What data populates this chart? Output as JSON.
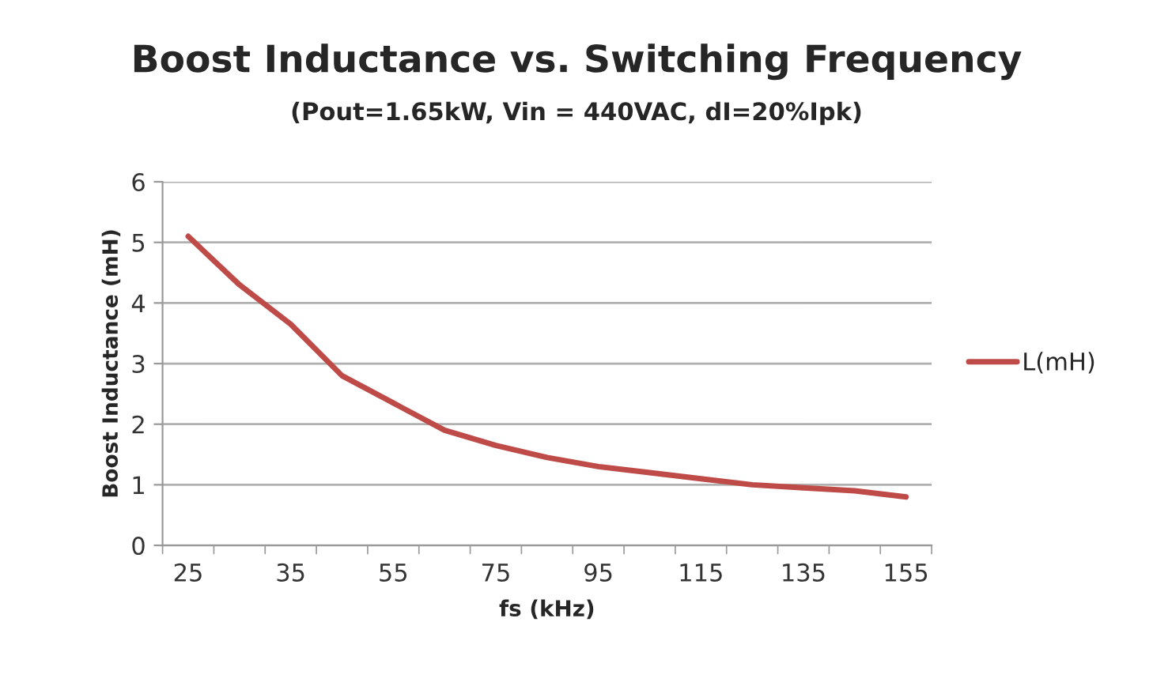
{
  "chart_data": {
    "type": "line",
    "title": "Boost Inductance vs. Switching Frequency",
    "subtitle": "(Pout=1.65kW, Vin = 440VAC, dI=20%Ipk)",
    "xlabel": "fs (kHz)",
    "ylabel": "Boost Inductance (mH)",
    "categories": [
      "25",
      null,
      "35",
      null,
      "55",
      null,
      "75",
      null,
      "95",
      null,
      "115",
      null,
      "135",
      null,
      "155"
    ],
    "series": [
      {
        "name": "L(mH)",
        "color": "#be4b48",
        "values": [
          5.1,
          4.3,
          3.65,
          2.8,
          2.35,
          1.9,
          1.65,
          1.45,
          1.3,
          1.2,
          1.1,
          1.0,
          0.95,
          0.9,
          0.8
        ]
      }
    ],
    "ylim": [
      0,
      6
    ],
    "yticks": [
      0,
      1,
      2,
      3,
      4,
      5,
      6
    ],
    "grid": "y",
    "legend": "right",
    "marker": "none",
    "line_style": "solid"
  }
}
